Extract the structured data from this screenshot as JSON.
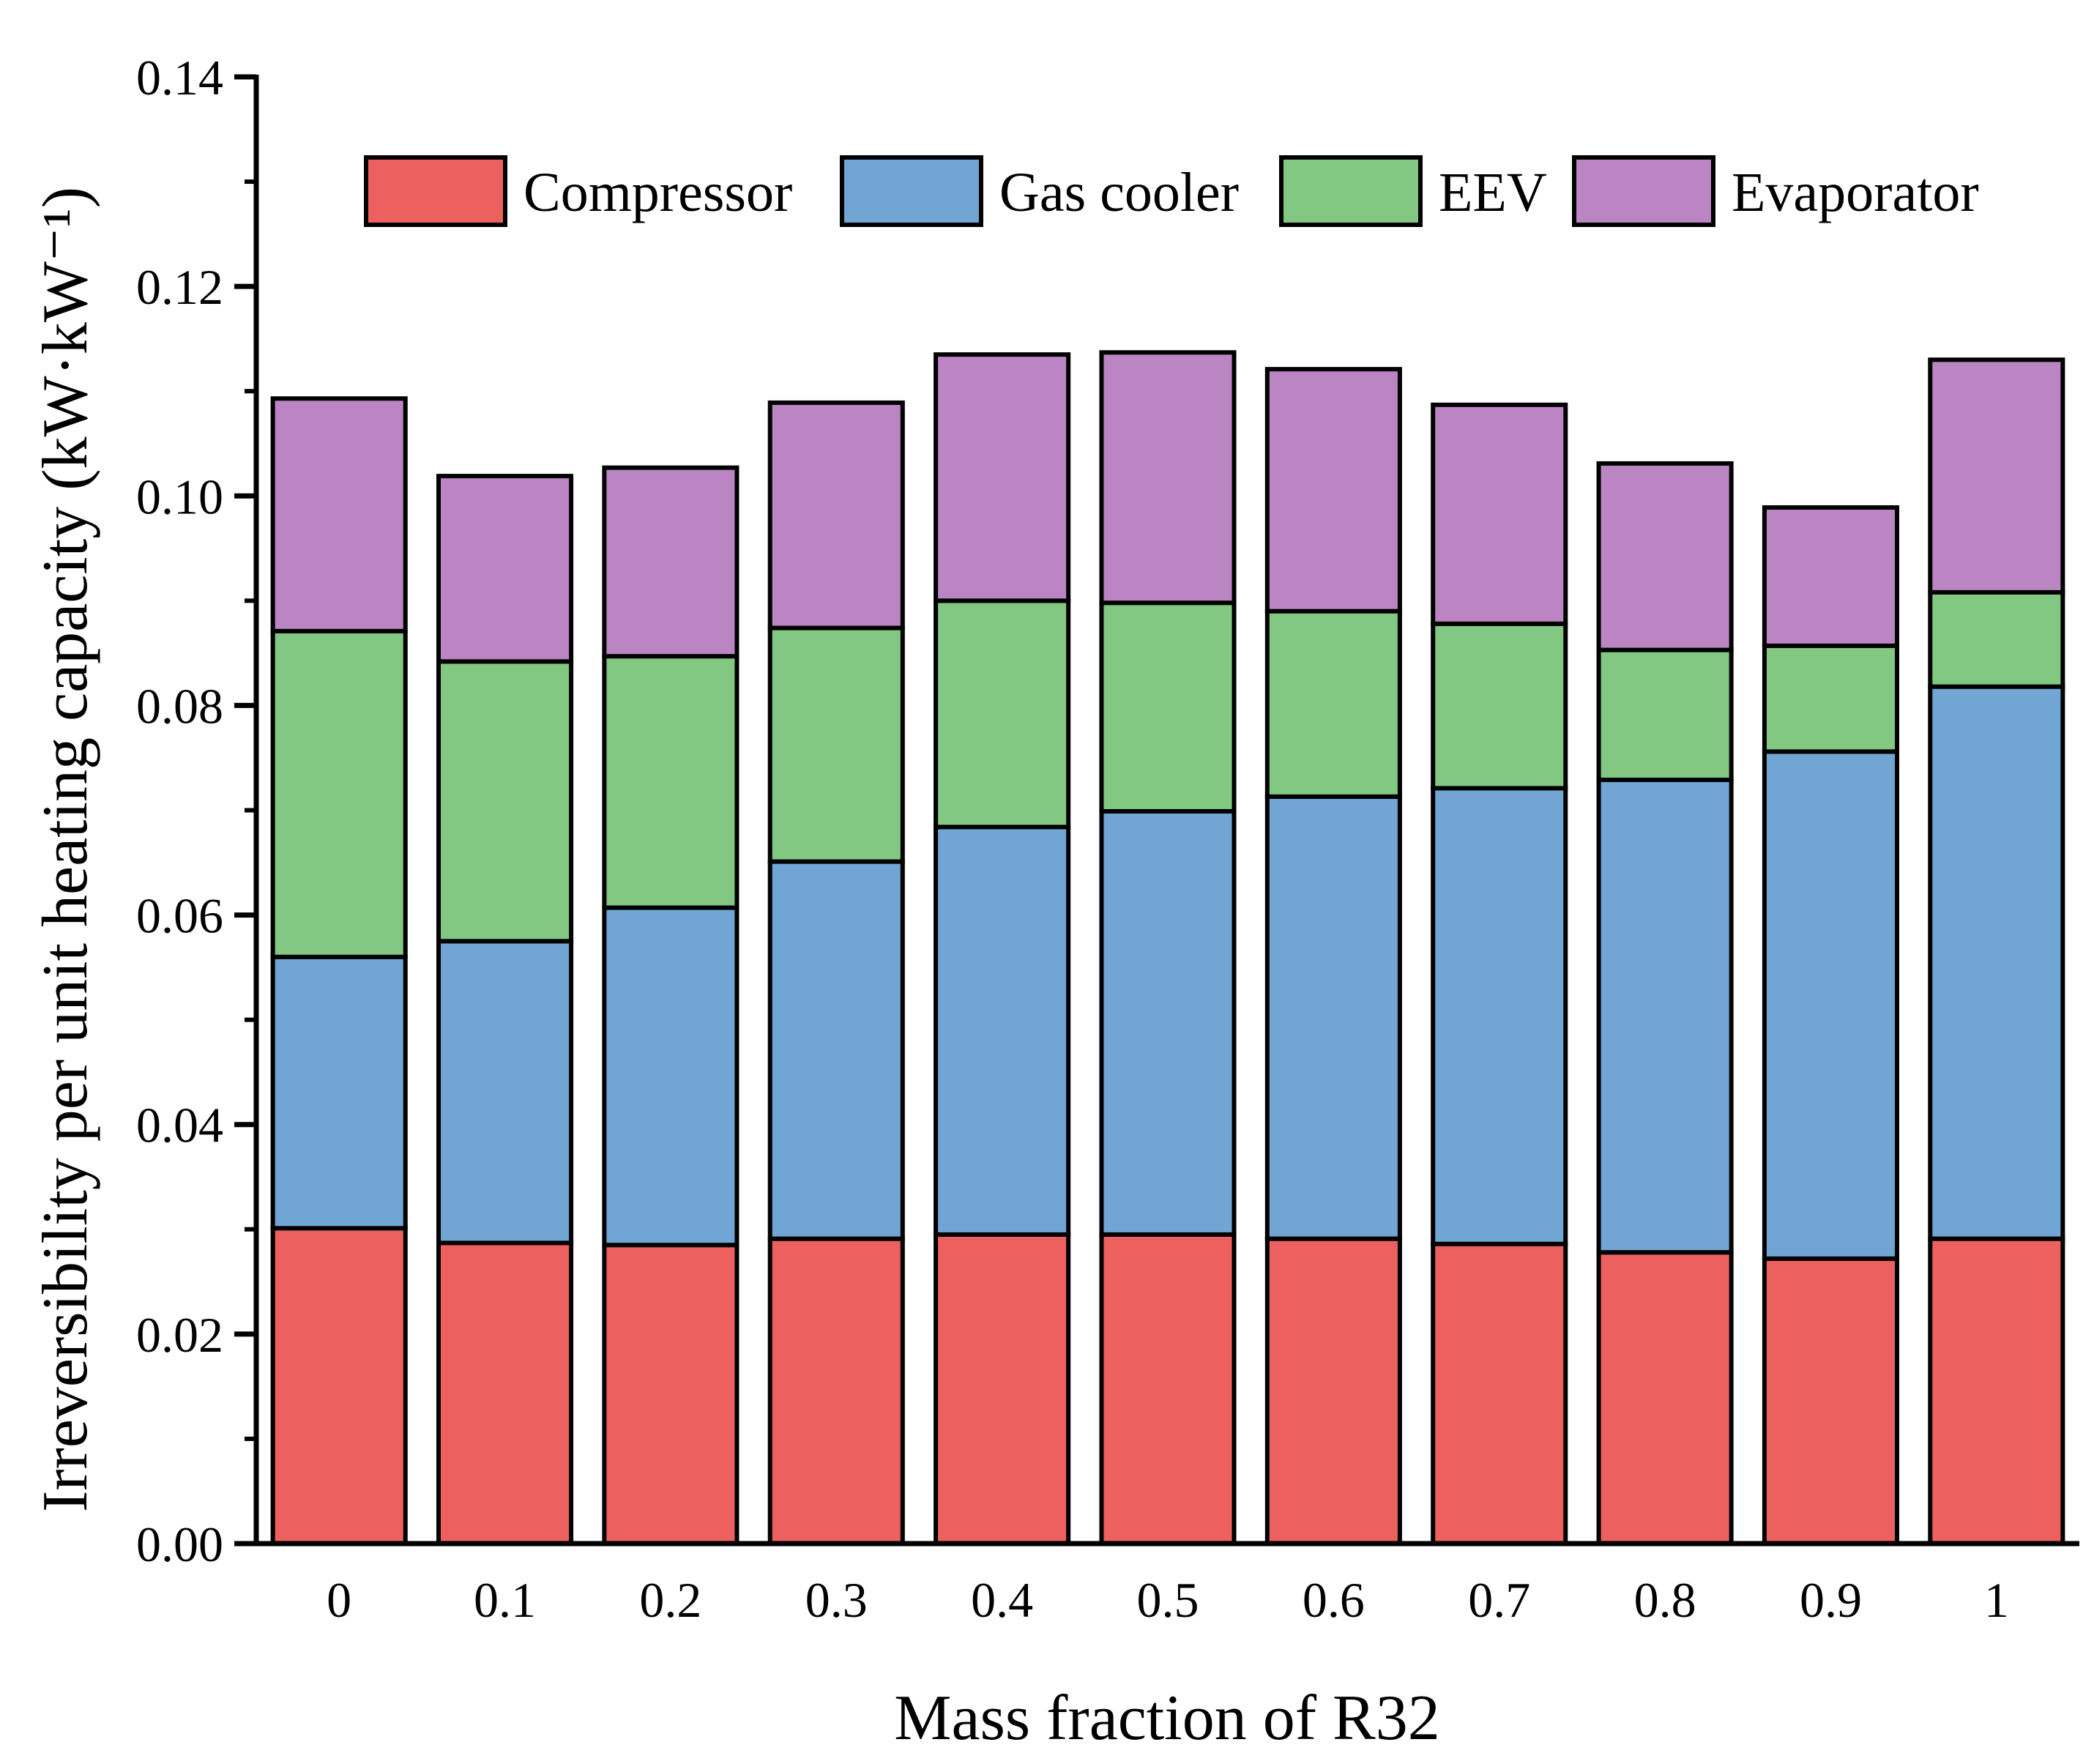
{
  "chart_data": {
    "type": "bar",
    "stacked": true,
    "title": "",
    "xlabel": "Mass fraction of R32",
    "ylabel": "Irreversibility per unit heating capacity (kW·kW⁻¹)",
    "ylim": [
      0,
      0.14
    ],
    "yticks": [
      "0.00",
      "0.02",
      "0.04",
      "0.06",
      "0.08",
      "0.10",
      "0.12",
      "0.14"
    ],
    "categories": [
      "0",
      "0.1",
      "0.2",
      "0.3",
      "0.4",
      "0.5",
      "0.6",
      "0.7",
      "0.8",
      "0.9",
      "1"
    ],
    "legend_position": "top-right",
    "series": [
      {
        "name": "Compressor",
        "color": "#ec6060",
        "values": [
          0.0301,
          0.0287,
          0.0285,
          0.0291,
          0.0295,
          0.0295,
          0.0291,
          0.0286,
          0.0278,
          0.0272,
          0.0291
        ]
      },
      {
        "name": "Gas cooler",
        "color": "#70a5d4",
        "values": [
          0.0259,
          0.0288,
          0.0322,
          0.036,
          0.0389,
          0.0404,
          0.0422,
          0.0435,
          0.0451,
          0.0484,
          0.0527
        ]
      },
      {
        "name": "EEV",
        "color": "#82c782",
        "values": [
          0.0311,
          0.0267,
          0.024,
          0.0223,
          0.0216,
          0.0199,
          0.0177,
          0.0157,
          0.0124,
          0.0101,
          0.009
        ]
      },
      {
        "name": "Evaporator",
        "color": "#bb85c3",
        "values": [
          0.0222,
          0.0177,
          0.018,
          0.0215,
          0.0235,
          0.0239,
          0.0231,
          0.0209,
          0.0178,
          0.0132,
          0.0222
        ]
      }
    ]
  }
}
